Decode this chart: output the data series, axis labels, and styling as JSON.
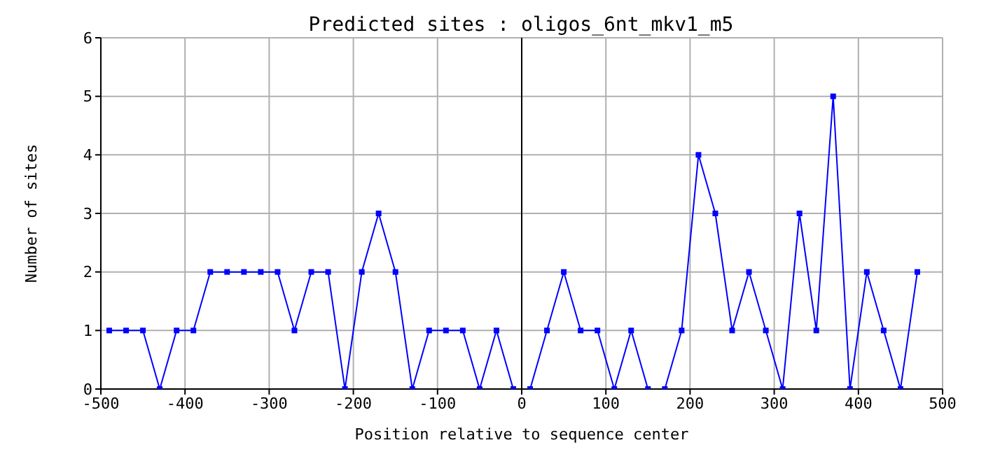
{
  "chart_data": {
    "type": "line",
    "title": "Predicted sites : oligos_6nt_mkv1_m5",
    "xlabel": "Position relative to sequence center",
    "ylabel": "Number of sites",
    "x": [
      -490,
      -470,
      -450,
      -430,
      -410,
      -390,
      -370,
      -350,
      -330,
      -310,
      -290,
      -270,
      -250,
      -230,
      -210,
      -190,
      -170,
      -150,
      -130,
      -110,
      -90,
      -70,
      -50,
      -30,
      -10,
      10,
      30,
      50,
      70,
      90,
      110,
      130,
      150,
      170,
      190,
      210,
      230,
      250,
      270,
      290,
      310,
      330,
      350,
      370,
      390,
      410,
      430,
      450,
      470
    ],
    "series": [
      {
        "color": "#0000ff",
        "values": [
          1,
          1,
          1,
          0,
          1,
          1,
          2,
          2,
          2,
          2,
          2,
          1,
          2,
          2,
          0,
          2,
          3,
          2,
          0,
          1,
          1,
          1,
          0,
          1,
          0,
          0,
          1,
          2,
          1,
          1,
          0,
          1,
          0,
          0,
          1,
          4,
          3,
          1,
          2,
          1,
          0,
          3,
          1,
          5,
          0,
          2,
          1,
          0,
          2
        ]
      }
    ],
    "xlim": [
      -500,
      500
    ],
    "xticks": [
      -500,
      -400,
      -300,
      -200,
      -100,
      0,
      100,
      200,
      300,
      400,
      500
    ],
    "ylim": [
      0,
      6
    ],
    "yticks": [
      0,
      1,
      2,
      3,
      4,
      5,
      6
    ],
    "ref_lines": [
      {
        "axis": "x",
        "value": 0,
        "color": "#000000"
      }
    ],
    "grid": true,
    "marker": "square",
    "line_style": "solid",
    "legend": false
  }
}
